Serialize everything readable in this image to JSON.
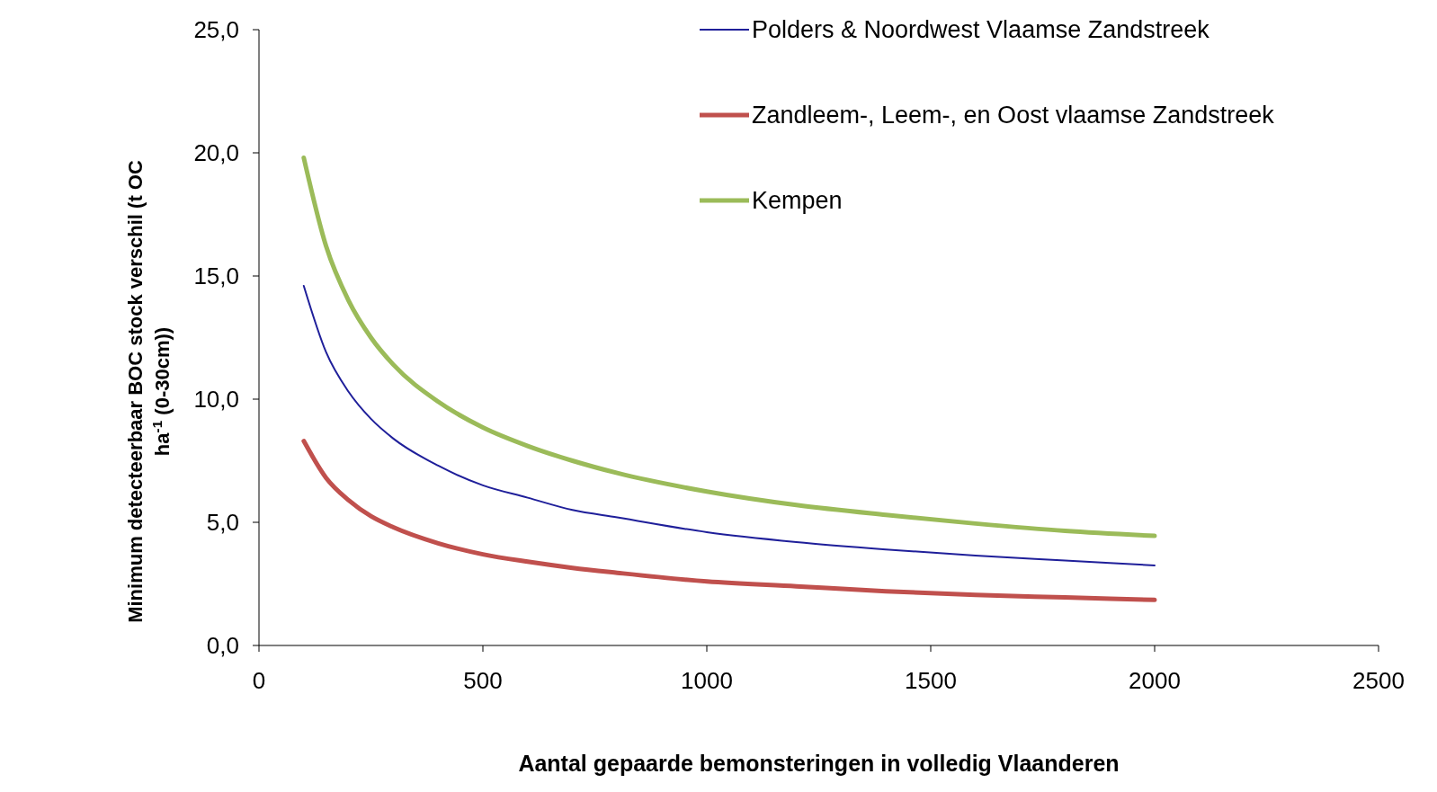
{
  "chart_data": {
    "type": "line",
    "xlabel": "Aantal gepaarde bemonsteringen in volledig Vlaanderen",
    "ylabel": "Minimum detecteerbaar BOC stock verschil (t OC ha$^{-1}$ (0-30cm))",
    "x": [
      100,
      150,
      200,
      250,
      300,
      400,
      500,
      600,
      700,
      800,
      1000,
      1200,
      1400,
      1600,
      1800,
      2000
    ],
    "series": [
      {
        "name": "Polders & Noordwest Vlaamse Zandstreek",
        "color": "#1f1f9a",
        "values": [
          14.6,
          11.9,
          10.3,
          9.2,
          8.4,
          7.3,
          6.5,
          6.0,
          5.5,
          5.2,
          4.6,
          4.2,
          3.9,
          3.65,
          3.45,
          3.25
        ]
      },
      {
        "name": "Zandleem-, Leem-, en Oost vlaamse Zandstreek",
        "color": "#c0504d",
        "values": [
          8.3,
          6.8,
          5.9,
          5.25,
          4.8,
          4.15,
          3.7,
          3.4,
          3.15,
          2.95,
          2.6,
          2.4,
          2.2,
          2.05,
          1.95,
          1.85
        ]
      },
      {
        "name": "Kempen",
        "color": "#9bbb59",
        "values": [
          19.8,
          16.2,
          14.0,
          12.5,
          11.4,
          9.9,
          8.85,
          8.1,
          7.5,
          7.0,
          6.25,
          5.7,
          5.3,
          4.95,
          4.65,
          4.45
        ]
      }
    ],
    "xlim": [
      0,
      2500
    ],
    "xticks": [
      0,
      500,
      1000,
      1500,
      2000,
      2500
    ],
    "ylim": [
      0,
      25
    ],
    "yticks": [
      {
        "value": 0,
        "label": "0,0"
      },
      {
        "value": 5,
        "label": "5,0"
      },
      {
        "value": 10,
        "label": "10,0"
      },
      {
        "value": 15,
        "label": "15,0"
      },
      {
        "value": 20,
        "label": "20,0"
      },
      {
        "value": 25,
        "label": "25,0"
      }
    ],
    "legend": "top right",
    "grid": false,
    "marker": "none",
    "line_style": "solid"
  }
}
